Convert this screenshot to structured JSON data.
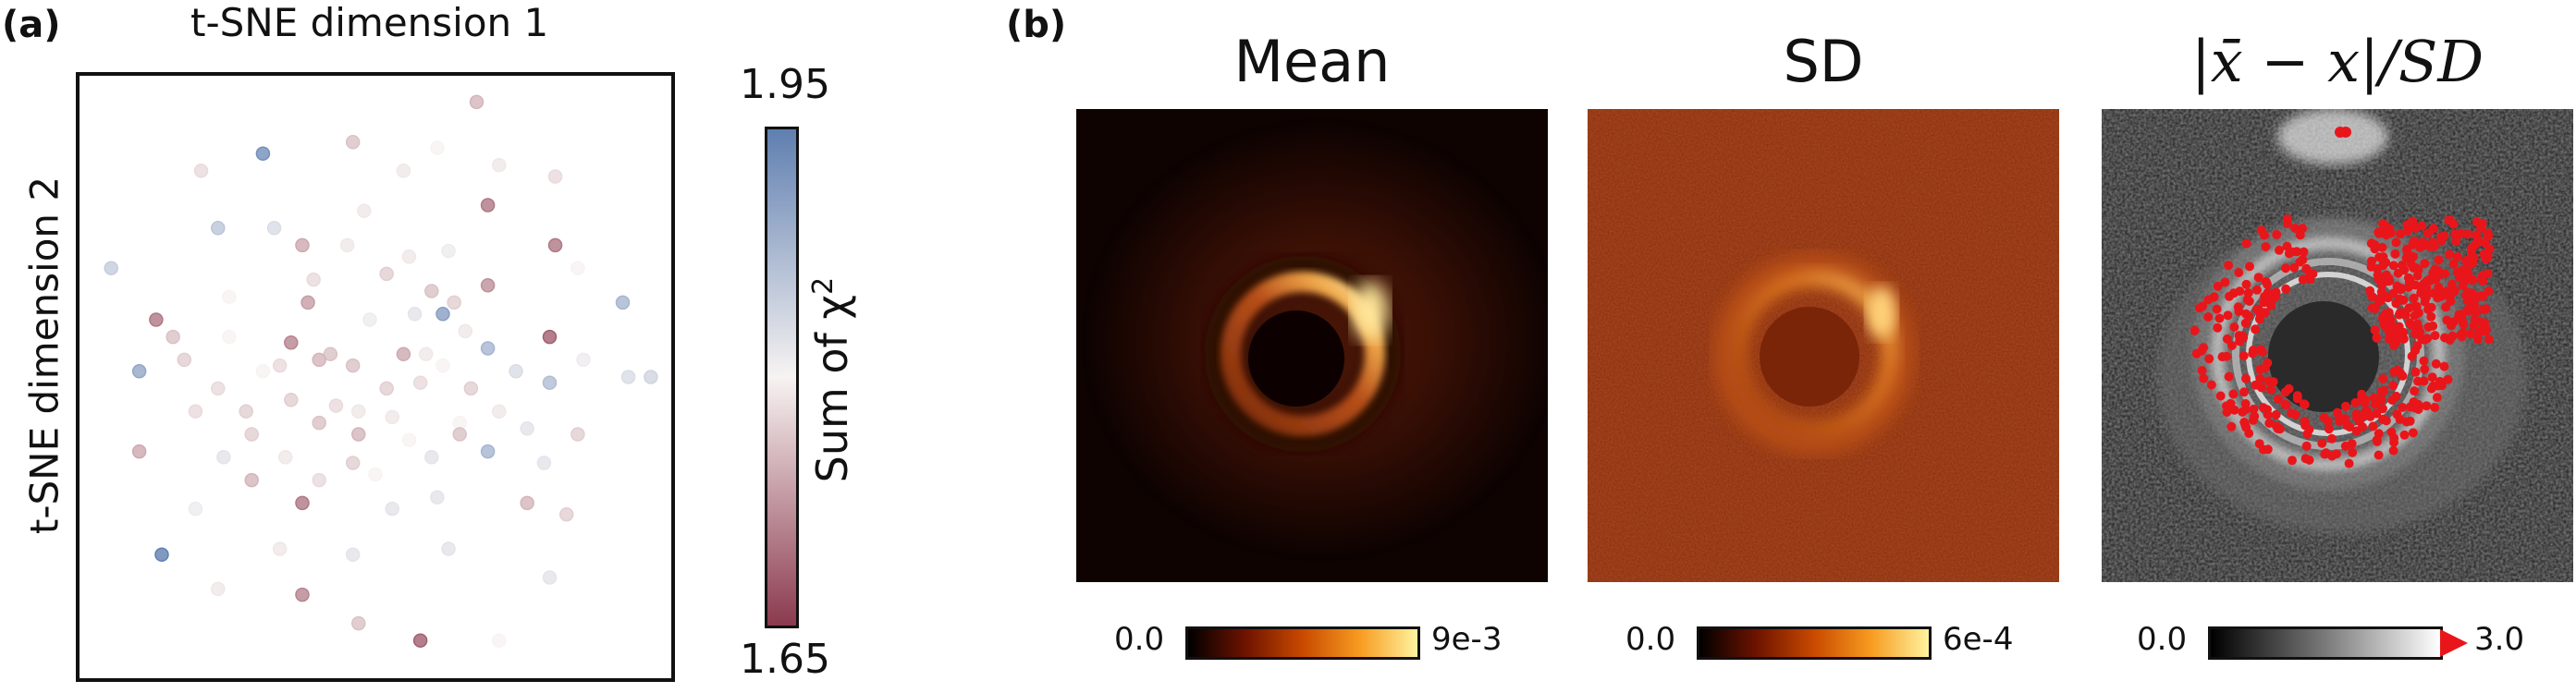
{
  "panel_a": {
    "label": "(a)",
    "chart_data": {
      "type": "scatter",
      "xlabel": "t-SNE dimension 1",
      "ylabel": "t-SNE dimension 2",
      "colorbar": {
        "label": "Sum of χ",
        "label_sup": "2",
        "min": 1.65,
        "max": 1.95,
        "min_label": "1.65",
        "max_label": "1.95"
      },
      "points": [
        {
          "x": 0.3,
          "y": 0.89,
          "c": 1.93
        },
        {
          "x": 0.68,
          "y": 0.98,
          "c": 1.75
        },
        {
          "x": 0.46,
          "y": 0.91,
          "c": 1.76
        },
        {
          "x": 0.19,
          "y": 0.86,
          "c": 1.78
        },
        {
          "x": 0.61,
          "y": 0.9,
          "c": 1.8
        },
        {
          "x": 0.55,
          "y": 0.86,
          "c": 1.79
        },
        {
          "x": 0.72,
          "y": 0.87,
          "c": 1.79
        },
        {
          "x": 0.82,
          "y": 0.85,
          "c": 1.78
        },
        {
          "x": 0.7,
          "y": 0.8,
          "c": 1.7
        },
        {
          "x": 0.22,
          "y": 0.76,
          "c": 1.86
        },
        {
          "x": 0.32,
          "y": 0.76,
          "c": 1.83
        },
        {
          "x": 0.48,
          "y": 0.79,
          "c": 1.79
        },
        {
          "x": 0.37,
          "y": 0.73,
          "c": 1.74
        },
        {
          "x": 0.45,
          "y": 0.73,
          "c": 1.79
        },
        {
          "x": 0.56,
          "y": 0.71,
          "c": 1.79
        },
        {
          "x": 0.63,
          "y": 0.72,
          "c": 1.81
        },
        {
          "x": 0.82,
          "y": 0.73,
          "c": 1.7
        },
        {
          "x": 0.52,
          "y": 0.68,
          "c": 1.77
        },
        {
          "x": 0.03,
          "y": 0.69,
          "c": 1.85
        },
        {
          "x": 0.39,
          "y": 0.67,
          "c": 1.78
        },
        {
          "x": 0.6,
          "y": 0.65,
          "c": 1.76
        },
        {
          "x": 0.7,
          "y": 0.66,
          "c": 1.72
        },
        {
          "x": 0.86,
          "y": 0.69,
          "c": 1.8
        },
        {
          "x": 0.24,
          "y": 0.64,
          "c": 1.8
        },
        {
          "x": 0.38,
          "y": 0.63,
          "c": 1.73
        },
        {
          "x": 0.62,
          "y": 0.61,
          "c": 1.91
        },
        {
          "x": 0.64,
          "y": 0.63,
          "c": 1.77
        },
        {
          "x": 0.57,
          "y": 0.61,
          "c": 1.82
        },
        {
          "x": 0.94,
          "y": 0.63,
          "c": 1.88
        },
        {
          "x": 0.11,
          "y": 0.6,
          "c": 1.7
        },
        {
          "x": 0.14,
          "y": 0.57,
          "c": 1.76
        },
        {
          "x": 0.35,
          "y": 0.56,
          "c": 1.71
        },
        {
          "x": 0.49,
          "y": 0.6,
          "c": 1.81
        },
        {
          "x": 0.66,
          "y": 0.58,
          "c": 1.79
        },
        {
          "x": 0.24,
          "y": 0.57,
          "c": 1.8
        },
        {
          "x": 0.81,
          "y": 0.57,
          "c": 1.68
        },
        {
          "x": 0.42,
          "y": 0.54,
          "c": 1.76
        },
        {
          "x": 0.55,
          "y": 0.54,
          "c": 1.74
        },
        {
          "x": 0.59,
          "y": 0.54,
          "c": 1.79
        },
        {
          "x": 0.7,
          "y": 0.55,
          "c": 1.88
        },
        {
          "x": 0.4,
          "y": 0.53,
          "c": 1.75
        },
        {
          "x": 0.16,
          "y": 0.53,
          "c": 1.77
        },
        {
          "x": 0.87,
          "y": 0.53,
          "c": 1.81
        },
        {
          "x": 0.33,
          "y": 0.52,
          "c": 1.78
        },
        {
          "x": 0.46,
          "y": 0.52,
          "c": 1.76
        },
        {
          "x": 0.62,
          "y": 0.52,
          "c": 1.8
        },
        {
          "x": 0.75,
          "y": 0.51,
          "c": 1.83
        },
        {
          "x": 0.3,
          "y": 0.51,
          "c": 1.8
        },
        {
          "x": 0.08,
          "y": 0.51,
          "c": 1.9
        },
        {
          "x": 0.95,
          "y": 0.5,
          "c": 1.83
        },
        {
          "x": 0.58,
          "y": 0.49,
          "c": 1.78
        },
        {
          "x": 0.52,
          "y": 0.48,
          "c": 1.77
        },
        {
          "x": 0.81,
          "y": 0.49,
          "c": 1.87
        },
        {
          "x": 0.22,
          "y": 0.48,
          "c": 1.78
        },
        {
          "x": 0.67,
          "y": 0.48,
          "c": 1.77
        },
        {
          "x": 0.99,
          "y": 0.5,
          "c": 1.84
        },
        {
          "x": 0.35,
          "y": 0.46,
          "c": 1.77
        },
        {
          "x": 0.43,
          "y": 0.45,
          "c": 1.78
        },
        {
          "x": 0.47,
          "y": 0.44,
          "c": 1.79
        },
        {
          "x": 0.18,
          "y": 0.44,
          "c": 1.78
        },
        {
          "x": 0.27,
          "y": 0.44,
          "c": 1.77
        },
        {
          "x": 0.53,
          "y": 0.43,
          "c": 1.79
        },
        {
          "x": 0.72,
          "y": 0.44,
          "c": 1.79
        },
        {
          "x": 0.4,
          "y": 0.42,
          "c": 1.76
        },
        {
          "x": 0.65,
          "y": 0.42,
          "c": 1.8
        },
        {
          "x": 0.77,
          "y": 0.41,
          "c": 1.82
        },
        {
          "x": 0.28,
          "y": 0.4,
          "c": 1.77
        },
        {
          "x": 0.47,
          "y": 0.4,
          "c": 1.75
        },
        {
          "x": 0.56,
          "y": 0.39,
          "c": 1.8
        },
        {
          "x": 0.65,
          "y": 0.4,
          "c": 1.76
        },
        {
          "x": 0.86,
          "y": 0.4,
          "c": 1.77
        },
        {
          "x": 0.7,
          "y": 0.37,
          "c": 1.88
        },
        {
          "x": 0.08,
          "y": 0.37,
          "c": 1.74
        },
        {
          "x": 0.23,
          "y": 0.36,
          "c": 1.82
        },
        {
          "x": 0.34,
          "y": 0.36,
          "c": 1.79
        },
        {
          "x": 0.46,
          "y": 0.35,
          "c": 1.77
        },
        {
          "x": 0.6,
          "y": 0.36,
          "c": 1.82
        },
        {
          "x": 0.8,
          "y": 0.35,
          "c": 1.82
        },
        {
          "x": 0.28,
          "y": 0.32,
          "c": 1.75
        },
        {
          "x": 0.4,
          "y": 0.32,
          "c": 1.78
        },
        {
          "x": 0.5,
          "y": 0.33,
          "c": 1.8
        },
        {
          "x": 0.37,
          "y": 0.28,
          "c": 1.7
        },
        {
          "x": 0.53,
          "y": 0.27,
          "c": 1.82
        },
        {
          "x": 0.61,
          "y": 0.29,
          "c": 1.82
        },
        {
          "x": 0.77,
          "y": 0.28,
          "c": 1.75
        },
        {
          "x": 0.84,
          "y": 0.26,
          "c": 1.77
        },
        {
          "x": 0.18,
          "y": 0.27,
          "c": 1.81
        },
        {
          "x": 0.12,
          "y": 0.19,
          "c": 1.95
        },
        {
          "x": 0.33,
          "y": 0.2,
          "c": 1.79
        },
        {
          "x": 0.46,
          "y": 0.19,
          "c": 1.82
        },
        {
          "x": 0.63,
          "y": 0.2,
          "c": 1.82
        },
        {
          "x": 0.81,
          "y": 0.15,
          "c": 1.82
        },
        {
          "x": 0.22,
          "y": 0.13,
          "c": 1.79
        },
        {
          "x": 0.37,
          "y": 0.12,
          "c": 1.71
        },
        {
          "x": 0.47,
          "y": 0.07,
          "c": 1.76
        },
        {
          "x": 0.58,
          "y": 0.04,
          "c": 1.68
        },
        {
          "x": 0.72,
          "y": 0.04,
          "c": 1.8
        }
      ]
    }
  },
  "panel_b": {
    "label": "(b)",
    "chart_data": [
      {
        "type": "heatmap",
        "title": "Mean",
        "cmap": "afmhot",
        "colorbar": {
          "min_label": "0.0",
          "max_label": "9e-3"
        }
      },
      {
        "type": "heatmap",
        "title": "SD",
        "cmap": "afmhot",
        "colorbar": {
          "min_label": "0.0",
          "max_label": "6e-4"
        }
      },
      {
        "type": "heatmap",
        "title": "|x̄ − x|/SD",
        "cmap": "gray",
        "overlay_color": "#e8161b",
        "colorbar": {
          "min_label": "0.0",
          "max_label": "3.0",
          "extend": "max"
        }
      }
    ]
  },
  "colors": {
    "cmap_low": "#8b3a4e",
    "cmap_mid": "#f7f3f2",
    "cmap_high": "#5f7fb0",
    "overlay": "#e8161b"
  }
}
